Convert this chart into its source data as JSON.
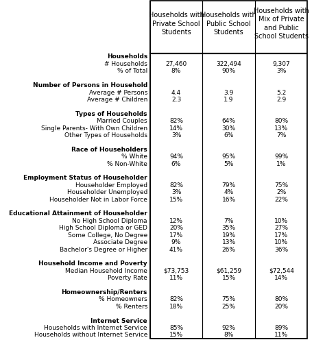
{
  "col_headers": [
    "Households with\n̲P̲r̲i̲v̲a̲t̲e̲ School\nStudents",
    "Households with\n̲P̲u̲b̲l̲i̲c̲ School\nStudents",
    "Households with\n̲M̲i̲x̲ of Private\nand Public\nSchool Students"
  ],
  "rows": [
    {
      "label": "Households",
      "bold": true,
      "values": [
        "",
        "",
        ""
      ]
    },
    {
      "label": "# Households",
      "bold": false,
      "values": [
        "27,460",
        "322,494",
        "9,307"
      ]
    },
    {
      "label": "% of Total",
      "bold": false,
      "values": [
        "8%",
        "90%",
        "3%"
      ]
    },
    {
      "label": "",
      "bold": false,
      "values": [
        "",
        "",
        ""
      ]
    },
    {
      "label": "Number of Persons in Household",
      "bold": true,
      "values": [
        "",
        "",
        ""
      ]
    },
    {
      "label": "Average # Persons",
      "bold": false,
      "values": [
        "4.4",
        "3.9",
        "5.2"
      ]
    },
    {
      "label": "Average # Children",
      "bold": false,
      "values": [
        "2.3",
        "1.9",
        "2.9"
      ]
    },
    {
      "label": "",
      "bold": false,
      "values": [
        "",
        "",
        ""
      ]
    },
    {
      "label": "Types of Households",
      "bold": true,
      "values": [
        "",
        "",
        ""
      ]
    },
    {
      "label": "Married Couples",
      "bold": false,
      "values": [
        "82%",
        "64%",
        "80%"
      ]
    },
    {
      "label": "Single Parents- With Own Children",
      "bold": false,
      "values": [
        "14%",
        "30%",
        "13%"
      ]
    },
    {
      "label": "Other Types of Households",
      "bold": false,
      "values": [
        "3%",
        "6%",
        "7%"
      ]
    },
    {
      "label": "",
      "bold": false,
      "values": [
        "",
        "",
        ""
      ]
    },
    {
      "label": "Race of Householders",
      "bold": true,
      "values": [
        "",
        "",
        ""
      ]
    },
    {
      "label": "% White",
      "bold": false,
      "values": [
        "94%",
        "95%",
        "99%"
      ]
    },
    {
      "label": "% Non-White",
      "bold": false,
      "values": [
        "6%",
        "5%",
        "1%"
      ]
    },
    {
      "label": "",
      "bold": false,
      "values": [
        "",
        "",
        ""
      ]
    },
    {
      "label": "Employment Status of Householder",
      "bold": true,
      "values": [
        "",
        "",
        ""
      ]
    },
    {
      "label": "Householder Employed",
      "bold": false,
      "values": [
        "82%",
        "79%",
        "75%"
      ]
    },
    {
      "label": "Householder Unemployed",
      "bold": false,
      "values": [
        "3%",
        "4%",
        "2%"
      ]
    },
    {
      "label": "Householder Not in Labor Force",
      "bold": false,
      "values": [
        "15%",
        "16%",
        "22%"
      ]
    },
    {
      "label": "",
      "bold": false,
      "values": [
        "",
        "",
        ""
      ]
    },
    {
      "label": "Educational Attainment of Householder",
      "bold": true,
      "values": [
        "",
        "",
        ""
      ]
    },
    {
      "label": "No High School Diploma",
      "bold": false,
      "values": [
        "12%",
        "7%",
        "10%"
      ]
    },
    {
      "label": "High School Diploma or GED",
      "bold": false,
      "values": [
        "20%",
        "35%",
        "27%"
      ]
    },
    {
      "label": "Some College, No Degree",
      "bold": false,
      "values": [
        "17%",
        "19%",
        "17%"
      ]
    },
    {
      "label": "Associate Degree",
      "bold": false,
      "values": [
        "9%",
        "13%",
        "10%"
      ]
    },
    {
      "label": "Bachelor's Degree or Higher",
      "bold": false,
      "values": [
        "41%",
        "26%",
        "36%"
      ]
    },
    {
      "label": "",
      "bold": false,
      "values": [
        "",
        "",
        ""
      ]
    },
    {
      "label": "Household Income and Poverty",
      "bold": true,
      "values": [
        "",
        "",
        ""
      ]
    },
    {
      "label": "Median Household Income",
      "bold": false,
      "values": [
        "$73,753",
        "$61,259",
        "$72,544"
      ]
    },
    {
      "label": "Poverty Rate",
      "bold": false,
      "values": [
        "11%",
        "15%",
        "14%"
      ]
    },
    {
      "label": "",
      "bold": false,
      "values": [
        "",
        "",
        ""
      ]
    },
    {
      "label": "Homeownership/Renters",
      "bold": true,
      "values": [
        "",
        "",
        ""
      ]
    },
    {
      "label": "% Homeowners",
      "bold": false,
      "values": [
        "82%",
        "75%",
        "80%"
      ]
    },
    {
      "label": "% Renters",
      "bold": false,
      "values": [
        "18%",
        "25%",
        "20%"
      ]
    },
    {
      "label": "",
      "bold": false,
      "values": [
        "",
        "",
        ""
      ]
    },
    {
      "label": "Internet Service",
      "bold": true,
      "values": [
        "",
        "",
        ""
      ]
    },
    {
      "label": "Households with Internet Service",
      "bold": false,
      "values": [
        "85%",
        "92%",
        "89%"
      ]
    },
    {
      "label": "Households without Internet Service",
      "bold": false,
      "values": [
        "15%",
        "8%",
        "11%"
      ]
    }
  ],
  "background_color": "#ffffff",
  "header_bg": "#ffffff",
  "border_color": "#000000",
  "text_color": "#000000",
  "font_size": 6.5,
  "header_font_size": 7.0
}
